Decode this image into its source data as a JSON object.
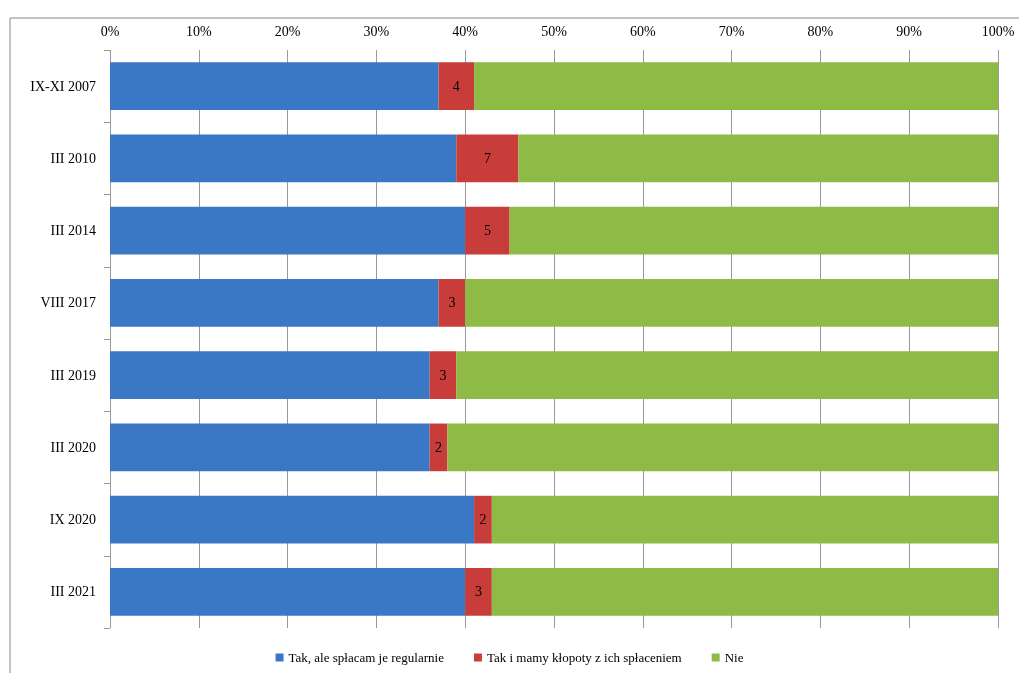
{
  "chart_data": {
    "type": "bar",
    "orientation": "horizontal",
    "stacked": true,
    "categories": [
      "IX-XI 2007",
      "III 2010",
      "III 2014",
      "VIII 2017",
      "III 2019",
      "III 2020",
      "IX 2020",
      "III 2021"
    ],
    "series": [
      {
        "name": "Tak, ale spłacam je regularnie",
        "color": "#3a78c6",
        "values": [
          37,
          39,
          40,
          37,
          36,
          36,
          41,
          40
        ]
      },
      {
        "name": "Tak i mamy kłopoty z ich spłaceniem",
        "color": "#c83c3a",
        "values": [
          4,
          7,
          5,
          3,
          3,
          2,
          2,
          3
        ],
        "value_labels": [
          "4",
          "7",
          "5",
          "3",
          "3",
          "2",
          "2",
          "3"
        ]
      },
      {
        "name": "Nie",
        "color": "#8dbb45",
        "values": [
          59,
          54,
          55,
          60,
          61,
          62,
          57,
          57
        ]
      }
    ],
    "xlim": [
      0,
      100
    ],
    "xticks": [
      {
        "value": 0,
        "label": "0%"
      },
      {
        "value": 10,
        "label": "10%"
      },
      {
        "value": 20,
        "label": "20%"
      },
      {
        "value": 30,
        "label": "30%"
      },
      {
        "value": 40,
        "label": "40%"
      },
      {
        "value": 50,
        "label": "50%"
      },
      {
        "value": 60,
        "label": "60%"
      },
      {
        "value": 70,
        "label": "70%"
      },
      {
        "value": 80,
        "label": "80%"
      },
      {
        "value": 90,
        "label": "90%"
      },
      {
        "value": 100,
        "label": "100%"
      }
    ],
    "grid": "x",
    "legend": "bottom"
  }
}
